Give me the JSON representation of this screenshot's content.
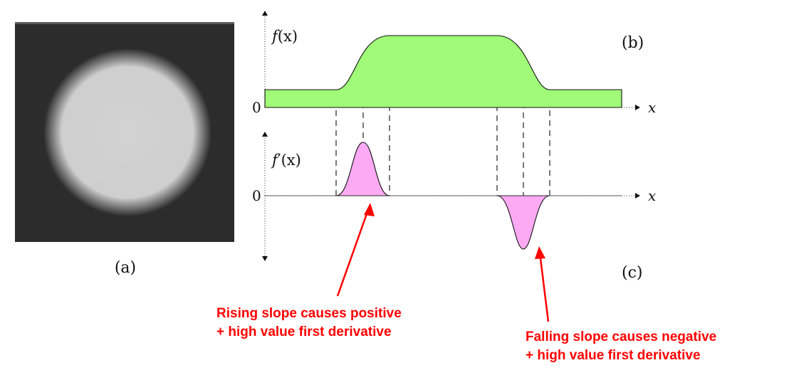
{
  "panel_a": {
    "label": "(a)",
    "background_color": "#2c2c2c",
    "disk_color": "#cfcfcf"
  },
  "panel_b": {
    "label": "(b)",
    "y_label_func": "f",
    "y_label_arg": "(x)",
    "x_label": "x",
    "zero_label": "0",
    "fill_color": "#a0fb78"
  },
  "panel_c": {
    "label": "(c)",
    "y_label_func": "f",
    "y_label_prime": "′",
    "y_label_arg": "(x)",
    "x_label": "x",
    "zero_label": "0",
    "fill_color": "#fbaaf3"
  },
  "annotations": {
    "color": "#ff0000",
    "rising_line1": "Rising slope causes positive",
    "rising_line2": "+ high value first derivative",
    "falling_line1": "Falling slope causes negative",
    "falling_line2": "+ high value first derivative"
  }
}
